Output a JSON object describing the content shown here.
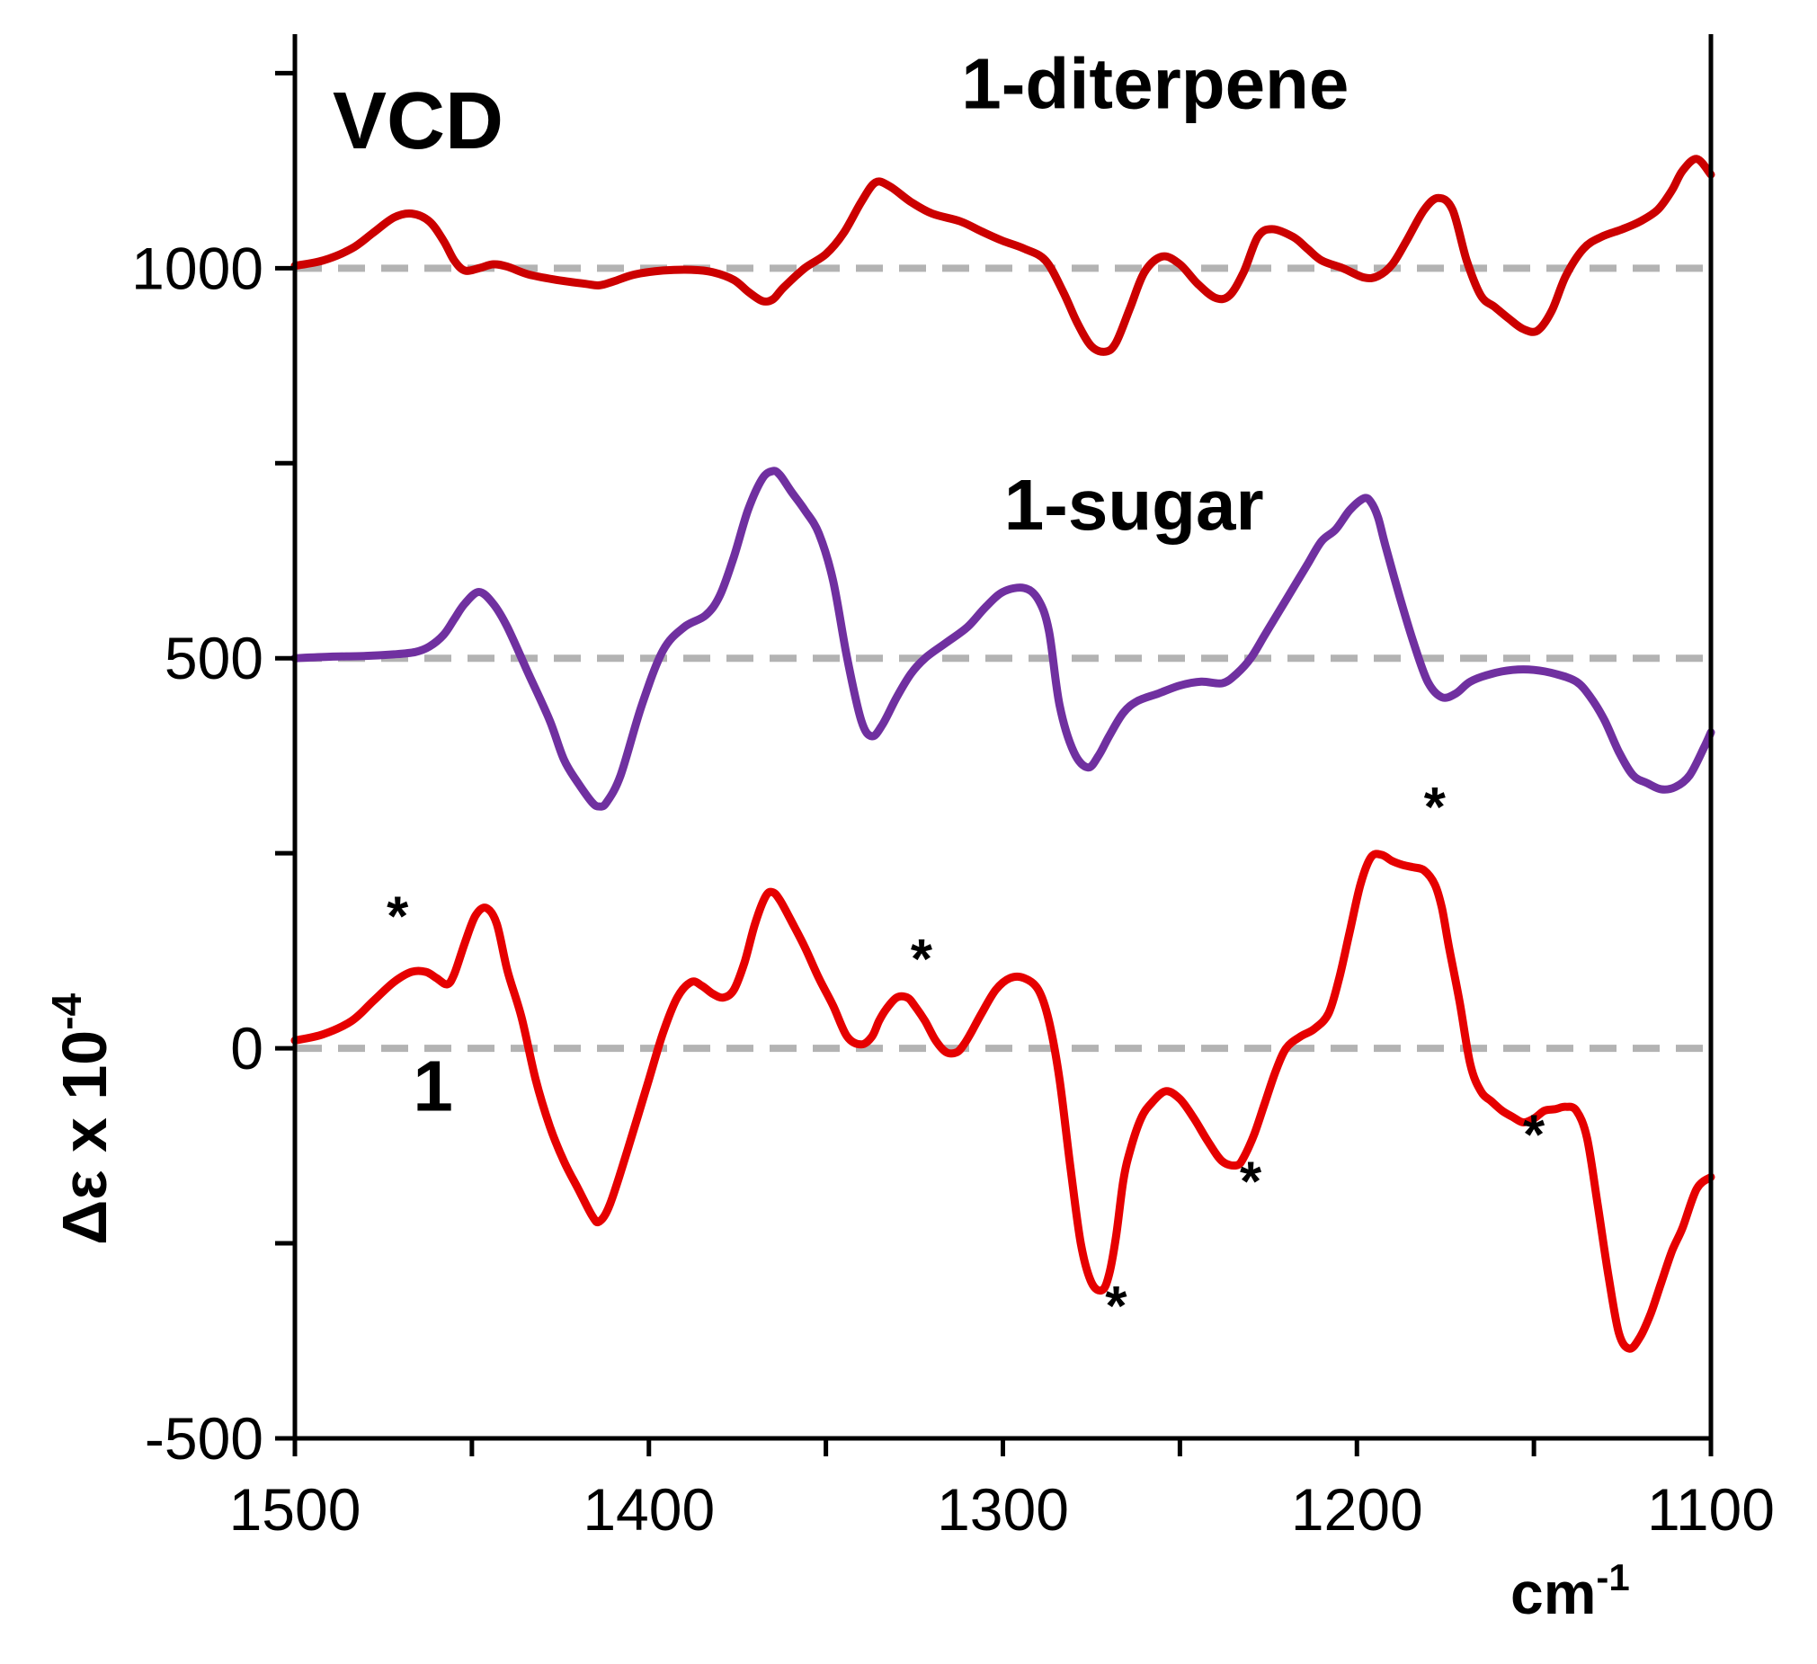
{
  "chart_data": {
    "type": "line",
    "title": "VCD",
    "xlabel": "cm",
    "xlabel_sup": "-1",
    "ylabel": "Δε x 10",
    "ylabel_sup": "-4",
    "xlim": [
      1500,
      1100
    ],
    "ylim": [
      -500,
      1300
    ],
    "x_ticks": [
      1500,
      1400,
      1300,
      1200,
      1100
    ],
    "x_tick_labels": [
      "1500",
      "1400",
      "1300",
      "1200",
      "1100"
    ],
    "y_ticks": [
      -500,
      0,
      500,
      1000
    ],
    "y_tick_labels": [
      "-500",
      "0",
      "500",
      "1000"
    ],
    "y_minor_ticks": [
      -250,
      250,
      750,
      1250
    ],
    "baselines": [
      0,
      500,
      1000
    ],
    "colors": {
      "red": "#e60000",
      "diterpene": "#cc0000",
      "purple": "#7030a0",
      "baseline": "#b3b3b3"
    },
    "series": [
      {
        "name": "1-diterpene",
        "color": "#cc0000",
        "x": [
          1500,
          1492,
          1484,
          1478,
          1472,
          1467,
          1462,
          1458,
          1455,
          1452,
          1448,
          1444,
          1440,
          1434,
          1426,
          1418,
          1414,
          1410,
          1404,
          1396,
          1388,
          1382,
          1376,
          1372,
          1368,
          1365,
          1362,
          1356,
          1350,
          1345,
          1340,
          1336,
          1332,
          1326,
          1320,
          1312,
          1306,
          1300,
          1294,
          1288,
          1283,
          1279,
          1275,
          1271,
          1268,
          1264,
          1260,
          1255,
          1250,
          1245,
          1240,
          1236,
          1232,
          1228,
          1224,
          1218,
          1214,
          1210,
          1204,
          1198,
          1194,
          1190,
          1186,
          1181,
          1177,
          1173,
          1169,
          1165,
          1161,
          1157,
          1153,
          1149,
          1145,
          1141,
          1136,
          1131,
          1125,
          1120,
          1115,
          1111,
          1108,
          1104,
          1100
        ],
        "y": [
          1003,
          1010,
          1025,
          1045,
          1065,
          1070,
          1060,
          1035,
          1010,
          997,
          1000,
          1005,
          1002,
          992,
          985,
          980,
          978,
          983,
          992,
          997,
          998,
          995,
          985,
          970,
          958,
          960,
          975,
          1000,
          1018,
          1045,
          1085,
          1110,
          1105,
          1085,
          1070,
          1060,
          1047,
          1035,
          1025,
          1010,
          970,
          930,
          900,
          893,
          905,
          950,
          995,
          1015,
          1005,
          980,
          962,
          965,
          995,
          1040,
          1050,
          1040,
          1025,
          1010,
          1000,
          988,
          990,
          1005,
          1035,
          1075,
          1090,
          1075,
          1010,
          965,
          950,
          935,
          922,
          920,
          945,
          990,
          1025,
          1040,
          1050,
          1060,
          1075,
          1100,
          1125,
          1140,
          1120
        ]
      },
      {
        "name": "1-sugar",
        "color": "#7030a0",
        "x": [
          1500,
          1490,
          1480,
          1472,
          1466,
          1462,
          1458,
          1455,
          1452,
          1448,
          1444,
          1440,
          1434,
          1428,
          1424,
          1420,
          1416,
          1414,
          1412,
          1408,
          1402,
          1396,
          1390,
          1384,
          1380,
          1376,
          1372,
          1368,
          1365,
          1363,
          1360,
          1356,
          1352,
          1348,
          1344,
          1340,
          1337,
          1334,
          1330,
          1326,
          1322,
          1316,
          1310,
          1305,
          1300,
          1294,
          1290,
          1287,
          1284,
          1280,
          1276,
          1273,
          1270,
          1266,
          1262,
          1256,
          1250,
          1244,
          1238,
          1234,
          1230,
          1226,
          1222,
          1218,
          1214,
          1210,
          1206,
          1202,
          1198,
          1196,
          1194,
          1192,
          1188,
          1184,
          1180,
          1176,
          1172,
          1168,
          1162,
          1156,
          1150,
          1144,
          1138,
          1134,
          1130,
          1126,
          1122,
          1118,
          1114,
          1110,
          1106,
          1102,
          1100
        ],
        "y": [
          500,
          502,
          503,
          505,
          508,
          515,
          530,
          550,
          570,
          585,
          570,
          540,
          480,
          420,
          370,
          340,
          315,
          310,
          315,
          350,
          440,
          510,
          540,
          555,
          580,
          630,
          690,
          730,
          740,
          735,
          715,
          690,
          660,
          600,
          500,
          420,
          400,
          415,
          450,
          480,
          500,
          520,
          540,
          565,
          585,
          590,
          575,
          535,
          440,
          380,
          360,
          375,
          400,
          430,
          445,
          455,
          465,
          470,
          468,
          480,
          500,
          530,
          560,
          590,
          620,
          650,
          665,
          690,
          705,
          700,
          680,
          645,
          580,
          520,
          470,
          450,
          455,
          470,
          480,
          485,
          485,
          480,
          470,
          450,
          420,
          380,
          350,
          340,
          332,
          335,
          350,
          385,
          405
        ]
      },
      {
        "name": "1",
        "color": "#e60000",
        "x": [
          1500,
          1492,
          1484,
          1478,
          1472,
          1467,
          1463,
          1460,
          1457,
          1455,
          1452,
          1449,
          1446,
          1443,
          1440,
          1436,
          1432,
          1428,
          1424,
          1420,
          1416,
          1414,
          1411,
          1406,
          1400,
          1396,
          1392,
          1388,
          1385,
          1382,
          1379,
          1376,
          1373,
          1370,
          1367,
          1365,
          1363,
          1360,
          1356,
          1352,
          1348,
          1344,
          1340,
          1337,
          1335,
          1333,
          1330,
          1327,
          1325,
          1322,
          1319,
          1316,
          1313,
          1311,
          1309,
          1306,
          1302,
          1298,
          1294,
          1290,
          1287,
          1284,
          1281,
          1278,
          1275,
          1272,
          1270,
          1268,
          1266,
          1264,
          1261,
          1258,
          1254,
          1250,
          1246,
          1242,
          1238,
          1234,
          1232,
          1229,
          1226,
          1223,
          1220,
          1216,
          1212,
          1208,
          1205,
          1202,
          1199,
          1196,
          1193,
          1190,
          1187,
          1184,
          1181,
          1178,
          1176,
          1174,
          1171,
          1168,
          1165,
          1162,
          1159,
          1156,
          1153,
          1150,
          1147,
          1144,
          1141,
          1138,
          1135,
          1132,
          1129,
          1126,
          1123,
          1120,
          1117,
          1114,
          1111,
          1108,
          1104,
          1100
        ],
        "y": [
          10,
          18,
          35,
          60,
          85,
          98,
          98,
          90,
          82,
          95,
          135,
          170,
          180,
          160,
          100,
          40,
          -40,
          -100,
          -145,
          -180,
          -215,
          -222,
          -200,
          -130,
          -40,
          20,
          65,
          85,
          80,
          70,
          65,
          75,
          110,
          160,
          195,
          200,
          190,
          165,
          130,
          90,
          55,
          15,
          5,
          15,
          35,
          50,
          65,
          65,
          55,
          35,
          10,
          -5,
          -5,
          5,
          20,
          45,
          75,
          90,
          90,
          75,
          35,
          -40,
          -150,
          -250,
          -300,
          -310,
          -290,
          -240,
          -170,
          -130,
          -90,
          -70,
          -55,
          -65,
          -90,
          -120,
          -145,
          -150,
          -140,
          -110,
          -70,
          -30,
          0,
          15,
          25,
          45,
          90,
          150,
          210,
          245,
          248,
          240,
          235,
          232,
          228,
          210,
          180,
          130,
          60,
          -20,
          -55,
          -68,
          -80,
          -88,
          -95,
          -90,
          -80,
          -78,
          -75,
          -80,
          -115,
          -200,
          -290,
          -365,
          -385,
          -370,
          -340,
          -300,
          -260,
          -230,
          -180,
          -165
        ]
      }
    ],
    "annotations": [
      {
        "text": "1-diterpene",
        "x": 1257,
        "y": 1205
      },
      {
        "text": "1-sugar",
        "x": 1263,
        "y": 665
      },
      {
        "text": "1",
        "x": 1461,
        "y": -80
      }
    ],
    "markers": [
      {
        "text": "*",
        "x": 1471,
        "y": 145
      },
      {
        "text": "*",
        "x": 1323,
        "y": 90
      },
      {
        "text": "*",
        "x": 1268,
        "y": -355
      },
      {
        "text": "*",
        "x": 1230,
        "y": -195
      },
      {
        "text": "*",
        "x": 1178,
        "y": 285
      },
      {
        "text": "*",
        "x": 1150,
        "y": -135
      }
    ]
  }
}
